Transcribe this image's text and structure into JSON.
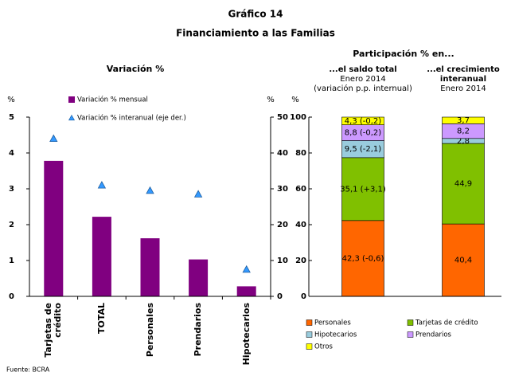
{
  "header": {
    "number": "Gráfico 14",
    "title": "Financiamiento a las Familias"
  },
  "source": "Fuente: BCRA",
  "chart_data": [
    {
      "type": "bar",
      "title": "Variación %",
      "y_unit": "%",
      "y2_unit": "%",
      "categories": [
        "Tarjetas de crédito",
        "TOTAL",
        "Personales",
        "Prendarios",
        "Hipotecarios"
      ],
      "series": [
        {
          "name": "Variación % mensual",
          "color": "#800080",
          "values": [
            3.78,
            2.22,
            1.62,
            1.03,
            0.28
          ]
        },
        {
          "name": "Variación % interanual (eje der.)",
          "color": "#3399ff",
          "marker": "triangle",
          "axis": "y2",
          "values": [
            44,
            31,
            29.5,
            28.5,
            7.5
          ]
        }
      ],
      "ylim": [
        0,
        5
      ],
      "yticks": [
        0,
        1,
        2,
        3,
        4,
        5
      ],
      "y2lim": [
        0,
        50
      ],
      "y2ticks": [
        0,
        10,
        20,
        30,
        40,
        50
      ]
    },
    {
      "type": "stacked_bar",
      "title": "Participación % en...",
      "y_unit": "%",
      "categories": [
        "...el saldo total",
        "...el crecimiento interanual"
      ],
      "category_subtitles": [
        [
          "Enero 2014",
          "(variación p.p. internual)"
        ],
        [
          "Enero 2014"
        ]
      ],
      "series": [
        {
          "name": "Personales",
          "color": "#ff6600",
          "values": [
            42.3,
            40.4
          ],
          "value_labels": [
            "42,3 (-0,6)",
            "40,4"
          ]
        },
        {
          "name": "Tarjetas de crédito",
          "color": "#80c000",
          "values": [
            35.1,
            44.9
          ],
          "value_labels": [
            "35,1 (+3,1)",
            "44,9"
          ]
        },
        {
          "name": "Hipotecarios",
          "color": "#99ccdd",
          "values": [
            9.5,
            2.8
          ],
          "value_labels": [
            "9,5 (-2,1)",
            "2,8"
          ]
        },
        {
          "name": "Prendarios",
          "color": "#cc99ff",
          "values": [
            8.8,
            8.2
          ],
          "value_labels": [
            "8,8 (-0,2)",
            "8,2"
          ]
        },
        {
          "name": "Otros",
          "color": "#ffff00",
          "values": [
            4.3,
            3.7
          ],
          "value_labels": [
            "4,3 (-0,2)",
            "3,7"
          ]
        }
      ],
      "ylim": [
        0,
        100
      ],
      "yticks": [
        0,
        20,
        40,
        60,
        80,
        100
      ]
    }
  ]
}
